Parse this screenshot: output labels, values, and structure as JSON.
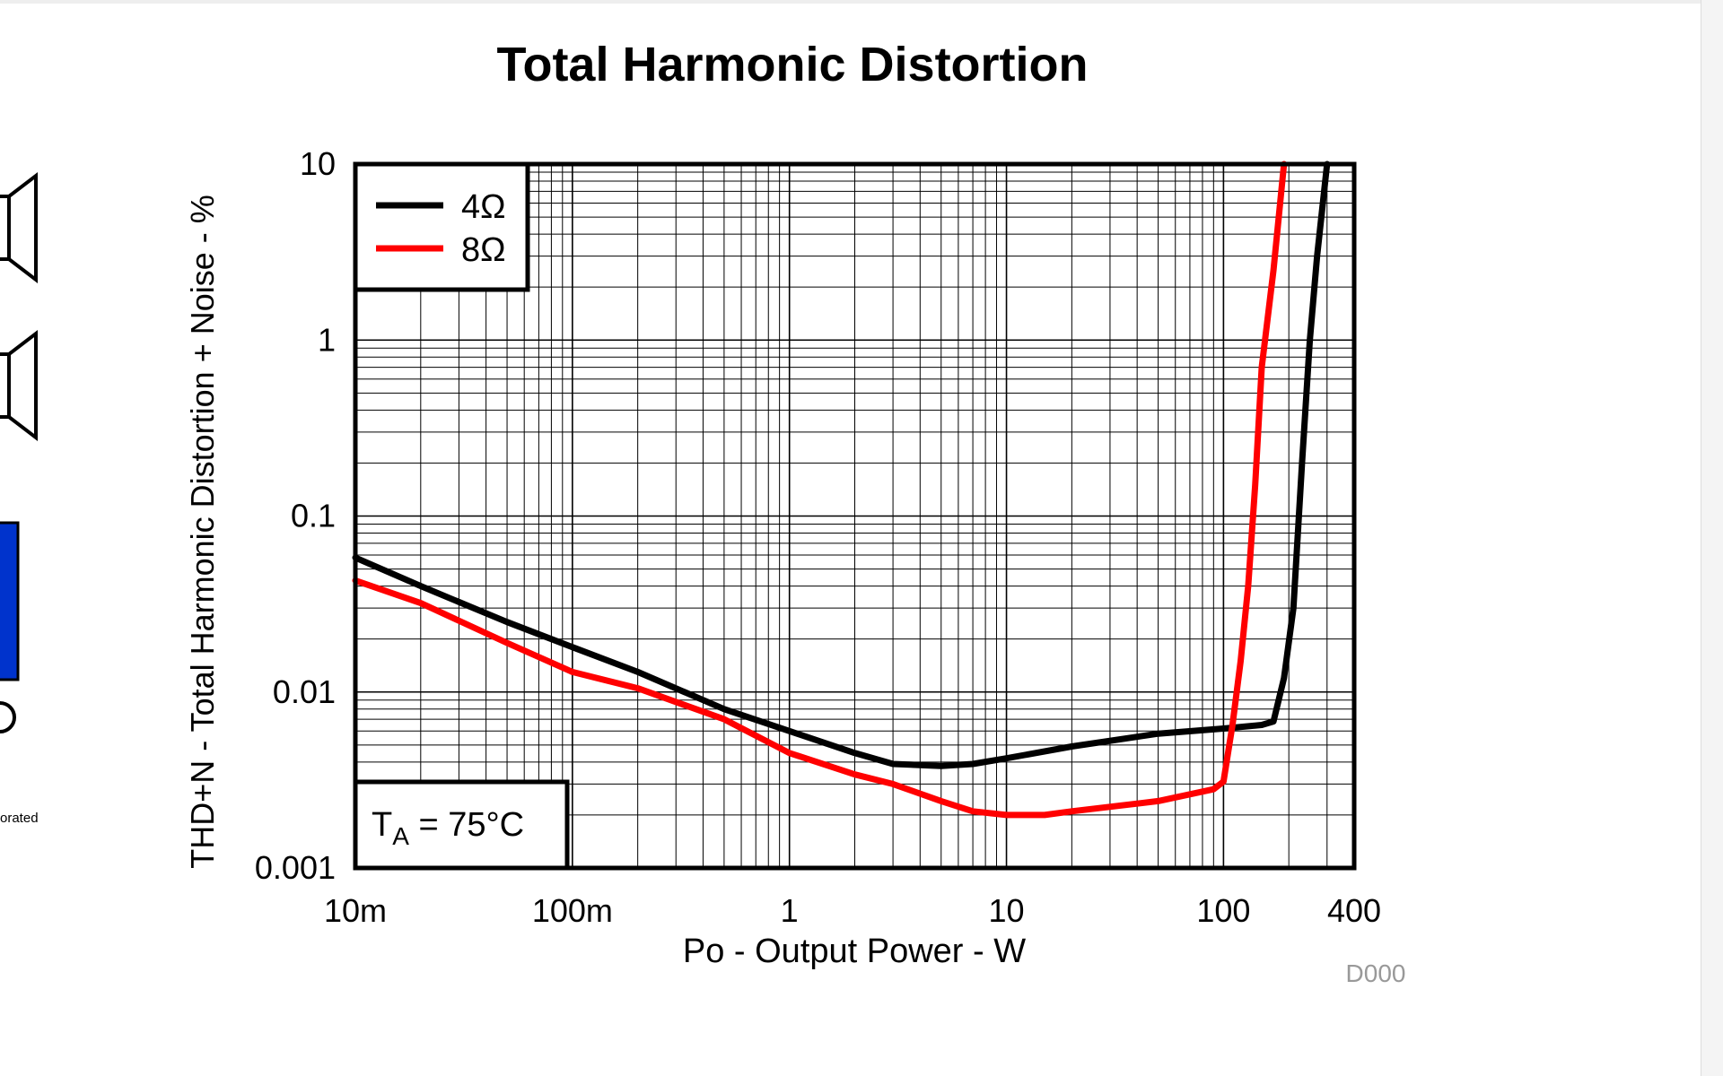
{
  "sidebar": {
    "fragment_text": "orated"
  },
  "chart_data": {
    "type": "line",
    "title": "Total Harmonic Distortion",
    "xlabel": "Po - Output Power - W",
    "ylabel": "THD+N - Total Harmonic Distortion + Noise - %",
    "xscale": "log",
    "yscale": "log",
    "xlim": [
      0.01,
      400
    ],
    "ylim": [
      0.001,
      10
    ],
    "xticks": [
      0.01,
      0.1,
      1,
      10,
      100,
      400
    ],
    "xtick_labels": [
      "10m",
      "100m",
      "1",
      "10",
      "100",
      "400"
    ],
    "yticks": [
      0.001,
      0.01,
      0.1,
      1,
      10
    ],
    "ytick_labels": [
      "0.001",
      "0.01",
      "0.1",
      "1",
      "10"
    ],
    "grid": true,
    "legend_position": "top-left",
    "annotation": "T_A = 75°C",
    "annotation_main": "T",
    "annotation_sub": "A",
    "annotation_rest": " = 75°C",
    "footnote": "D000",
    "series": [
      {
        "name": "4Ω",
        "color": "#000000",
        "x": [
          0.01,
          0.02,
          0.05,
          0.1,
          0.2,
          0.5,
          1,
          2,
          3,
          5,
          7,
          10,
          20,
          50,
          100,
          150,
          170,
          190,
          210,
          230,
          250,
          270,
          300
        ],
        "y": [
          0.058,
          0.04,
          0.025,
          0.018,
          0.013,
          0.008,
          0.006,
          0.0045,
          0.0039,
          0.0038,
          0.0039,
          0.0042,
          0.0049,
          0.0058,
          0.0062,
          0.0065,
          0.0068,
          0.012,
          0.03,
          0.2,
          1.0,
          3.0,
          10
        ]
      },
      {
        "name": "8Ω",
        "color": "#ff0000",
        "x": [
          0.01,
          0.02,
          0.05,
          0.1,
          0.2,
          0.5,
          1,
          2,
          3,
          5,
          7,
          10,
          15,
          20,
          50,
          90,
          100,
          110,
          120,
          130,
          140,
          150,
          170,
          190
        ],
        "y": [
          0.043,
          0.032,
          0.019,
          0.013,
          0.0105,
          0.007,
          0.0045,
          0.0034,
          0.003,
          0.0024,
          0.0021,
          0.002,
          0.002,
          0.0021,
          0.0024,
          0.0028,
          0.0031,
          0.0065,
          0.015,
          0.04,
          0.15,
          0.7,
          2.5,
          10
        ]
      }
    ]
  }
}
